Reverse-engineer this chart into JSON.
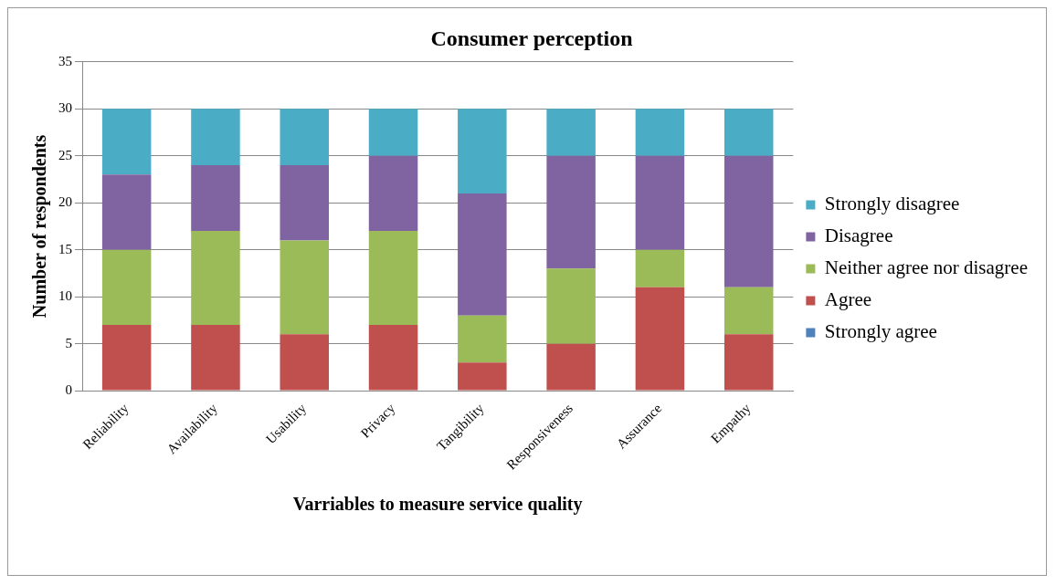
{
  "chart_data": {
    "type": "bar",
    "stacked": true,
    "title": "Consumer perception",
    "xlabel": "Varriables to measure service quality",
    "ylabel": "Number of respondents",
    "categories": [
      "Reliability",
      "Availability",
      "Usability",
      "Privacy",
      "Tangibility",
      "Responsiveness",
      "Assurance",
      "Empathy"
    ],
    "series": [
      {
        "name": "Strongly agree",
        "color": "#4f81bd",
        "values": [
          0,
          0,
          0,
          0,
          0,
          0,
          0,
          0
        ]
      },
      {
        "name": "Agree",
        "color": "#c0504d",
        "values": [
          7,
          7,
          6,
          7,
          3,
          5,
          11,
          6
        ]
      },
      {
        "name": "Neither agree nor disagree",
        "color": "#9bbb59",
        "values": [
          8,
          10,
          10,
          10,
          5,
          8,
          4,
          5
        ]
      },
      {
        "name": "Disagree",
        "color": "#8064a2",
        "values": [
          8,
          7,
          8,
          8,
          13,
          12,
          10,
          14
        ]
      },
      {
        "name": "Strongly disagree",
        "color": "#4bacc6",
        "values": [
          7,
          6,
          6,
          5,
          9,
          5,
          5,
          5
        ]
      }
    ],
    "ylim": [
      0,
      35
    ],
    "yticks": [
      0,
      5,
      10,
      15,
      20,
      25,
      30,
      35
    ],
    "grid": "y",
    "legend": "right"
  }
}
